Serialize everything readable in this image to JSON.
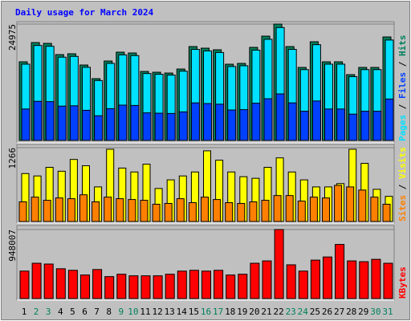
{
  "chart_data": [
    {
      "type": "bar",
      "title": "Daily usage for March 2024",
      "ylim": [
        0,
        24975
      ],
      "yticks": [
        24975
      ],
      "series": [
        {
          "name": "Pages",
          "color": "#00e0ff",
          "values": [
            16370,
            20380,
            20210,
            17870,
            18040,
            15700,
            12860,
            16540,
            18370,
            18210,
            14360,
            14200,
            14030,
            14870,
            19540,
            19210,
            18880,
            15870,
            16030,
            19380,
            21710,
            24230,
            19540,
            15200,
            20550,
            16370,
            16370,
            13700,
            15200,
            15200,
            21550
          ]
        },
        {
          "name": "Files",
          "color": "#0040ff",
          "values": [
            6750,
            8400,
            8330,
            7370,
            7440,
            6470,
            5300,
            6820,
            7580,
            7510,
            5920,
            5850,
            5790,
            6130,
            8060,
            7920,
            7780,
            6540,
            6610,
            7990,
            8950,
            9990,
            8060,
            6270,
            8470,
            6750,
            6750,
            5650,
            6270,
            6270,
            8890
          ]
        },
        {
          "name": "Hits",
          "color": "#00805c",
          "values": [
            16876,
            21008,
            20836,
            18425,
            18598,
            16187,
            13259,
            17048,
            18942,
            18770,
            14809,
            14637,
            14465,
            15326,
            20147,
            19803,
            19459,
            16359,
            16531,
            19975,
            22386,
            24975,
            20147,
            15670,
            21181,
            16876,
            16876,
            14120,
            15670,
            15670,
            22214
          ]
        }
      ]
    },
    {
      "type": "bar",
      "ylim": [
        0,
        1266
      ],
      "yticks": [
        1266
      ],
      "series": [
        {
          "name": "Sites",
          "color": "#ff8000",
          "values": [
            337,
            418,
            364,
            404,
            391,
            458,
            337,
            418,
            391,
            377,
            364,
            296,
            310,
            391,
            323,
            418,
            377,
            323,
            310,
            337,
            364,
            445,
            445,
            350,
            418,
            404,
            620,
            593,
            539,
            418,
            296
          ]
        },
        {
          "name": "Visits",
          "color": "#ffff00",
          "values": [
            822,
            781,
            929,
            862,
            1064,
            956,
            593,
            1239,
            916,
            849,
            983,
            566,
            714,
            781,
            849,
            1212,
            1051,
            849,
            768,
            741,
            929,
            1091,
            849,
            714,
            593,
            593,
            650,
            1239,
            997,
            552,
            431
          ]
        }
      ]
    },
    {
      "type": "bar",
      "ylim": [
        0,
        948007
      ],
      "yticks": [
        948007
      ],
      "categories": [
        "1",
        "2",
        "3",
        "4",
        "5",
        "6",
        "7",
        "8",
        "9",
        "10",
        "11",
        "12",
        "13",
        "14",
        "15",
        "16",
        "17",
        "18",
        "19",
        "20",
        "21",
        "22",
        "23",
        "24",
        "25",
        "26",
        "27",
        "28",
        "29",
        "30",
        "31"
      ],
      "category_colors": [
        "#000000",
        "#00805c",
        "#00805c",
        "#000000",
        "#000000",
        "#000000",
        "#000000",
        "#000000",
        "#00805c",
        "#00805c",
        "#000000",
        "#000000",
        "#000000",
        "#000000",
        "#000000",
        "#00805c",
        "#00805c",
        "#000000",
        "#000000",
        "#000000",
        "#000000",
        "#000000",
        "#00805c",
        "#00805c",
        "#000000",
        "#000000",
        "#000000",
        "#000000",
        "#000000",
        "#00805c",
        "#00805c"
      ],
      "series": [
        {
          "name": "KBytes",
          "color": "#ff0000",
          "values": [
            377055,
            484785,
            474012,
            409374,
            387828,
            323190,
            398601,
            301644,
            333963,
            312417,
            312417,
            312417,
            333963,
            377055,
            387828,
            377055,
            387828,
            323190,
            333963,
            484785,
            517104,
            948007,
            463239,
            377055,
            527877,
            570969,
            743337,
            517104,
            506331,
            538650,
            484785
          ]
        }
      ]
    }
  ]
}
